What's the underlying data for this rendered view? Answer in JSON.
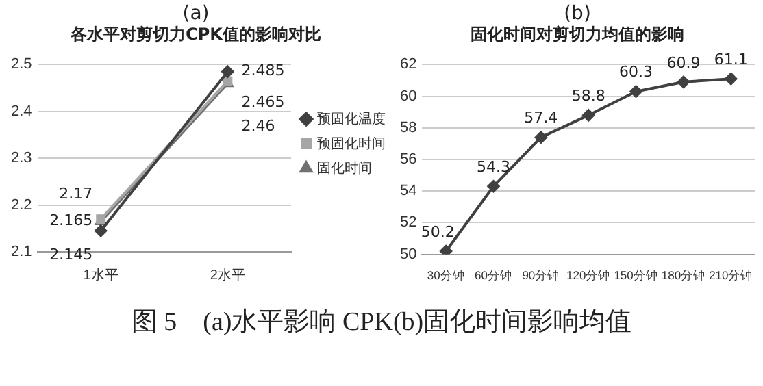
{
  "chart_data": [
    {
      "type": "line",
      "title": "(a)",
      "subtitle": "各水平对剪切力CPK值的影响对比",
      "categories": [
        "1水平",
        "2水平"
      ],
      "series": [
        {
          "name": "预固化温度",
          "color": "#404040",
          "marker": "diamond",
          "values": [
            2.145,
            2.485
          ]
        },
        {
          "name": "预固化时间",
          "color": "#a6a6a6",
          "marker": "square",
          "values": [
            2.17,
            2.465
          ]
        },
        {
          "name": "固化时间",
          "color": "#707070",
          "marker": "triangle",
          "values": [
            2.165,
            2.46
          ]
        }
      ],
      "ylim": [
        2.1,
        2.5
      ],
      "yticks": [
        2.1,
        2.2,
        2.3,
        2.4,
        2.5
      ],
      "grid": "y",
      "legend": "right",
      "data_labels": true
    },
    {
      "type": "line",
      "title": "(b)",
      "subtitle": "固化时间对剪切力均值的影响",
      "categories": [
        "30分钟",
        "60分钟",
        "90分钟",
        "120分钟",
        "150分钟",
        "180分钟",
        "210分钟"
      ],
      "series": [
        {
          "color": "#404040",
          "marker": "diamond",
          "values": [
            50.2,
            54.3,
            57.4,
            58.8,
            60.3,
            60.9,
            61.1
          ]
        }
      ],
      "ylim": [
        50,
        62
      ],
      "yticks": [
        50,
        52,
        54,
        56,
        58,
        60,
        62
      ],
      "grid": "y",
      "legend": false,
      "data_labels": true,
      "annotations": [
        "图 5    (a)水平影响 CPK(b)固化时间影响均值"
      ]
    }
  ]
}
